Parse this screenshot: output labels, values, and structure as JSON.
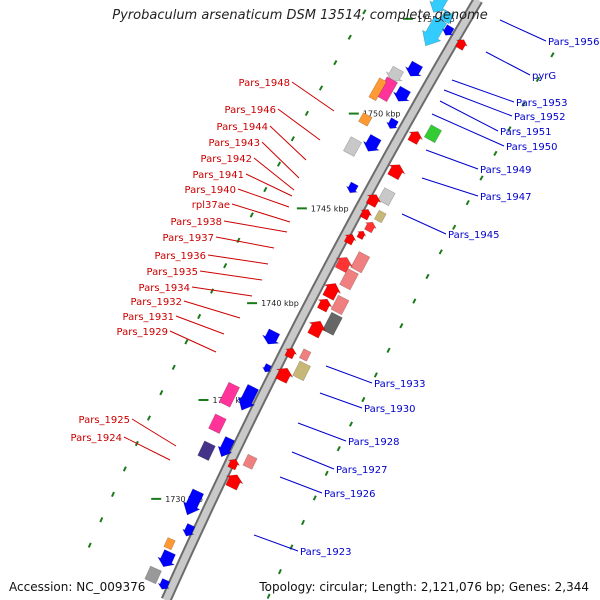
{
  "title": "Pyrobaculum arsenaticum DSM 13514, complete genome",
  "footer": {
    "accession": "Accession: NC_009376",
    "topology": "Topology: circular; Length: 2,121,076 bp; Genes: 2,344"
  },
  "colors": {
    "forward": "#0000ff",
    "reverse": "#ff0000",
    "label_forward": "#0000cc",
    "label_reverse": "#cc0000",
    "backbone": "#999999",
    "tick": "#1a7a1a"
  },
  "ticks": [
    "1730 kbp",
    "1735 kbp",
    "1740 kbp",
    "1745 kbp",
    "1750 kbp",
    "1755 kbp"
  ],
  "labels_left": [
    "Pars_1948",
    "Pars_1946",
    "Pars_1944",
    "Pars_1943",
    "Pars_1942",
    "Pars_1941",
    "Pars_1940",
    "rpl37ae",
    "Pars_1938",
    "Pars_1937",
    "Pars_1936",
    "Pars_1935",
    "Pars_1934",
    "Pars_1932",
    "Pars_1931",
    "Pars_1929",
    "Pars_1925",
    "Pars_1924"
  ],
  "labels_right": [
    "Pars_1956",
    "pyrG",
    "Pars_1953",
    "Pars_1952",
    "Pars_1951",
    "Pars_1950",
    "Pars_1949",
    "Pars_1947",
    "Pars_1945",
    "Pars_1933",
    "Pars_1930",
    "Pars_1928",
    "Pars_1927",
    "Pars_1926",
    "Pars_1923"
  ]
}
